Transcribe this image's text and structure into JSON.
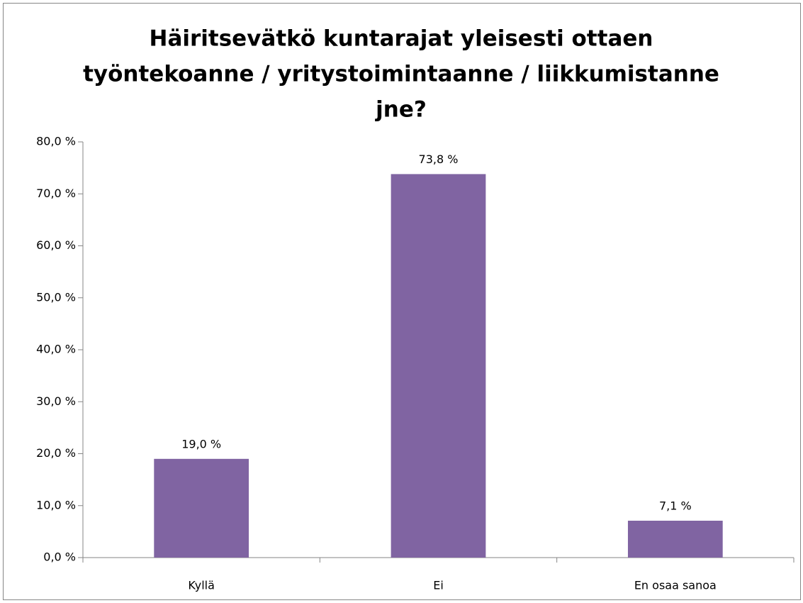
{
  "chart_data": {
    "type": "bar",
    "title": [
      "Häiritsevätkö kuntarajat yleisesti ottaen",
      "työntekoanne / yritystoimintaanne / liikkumistanne",
      "jne?"
    ],
    "categories": [
      "Kyllä",
      "Ei",
      "En osaa sanoa"
    ],
    "values": [
      19.0,
      73.8,
      7.1
    ],
    "value_labels": [
      "19,0 %",
      "73,8 %",
      "7,1 %"
    ],
    "color": "#8064a2",
    "ylim": [
      0,
      80
    ],
    "yticks": [
      {
        "value": 0,
        "label": "0,0 %"
      },
      {
        "value": 10,
        "label": "10,0 %"
      },
      {
        "value": 20,
        "label": "20,0 %"
      },
      {
        "value": 30,
        "label": "30,0 %"
      },
      {
        "value": 40,
        "label": "40,0 %"
      },
      {
        "value": 50,
        "label": "50,0 %"
      },
      {
        "value": 60,
        "label": "60,0 %"
      },
      {
        "value": 70,
        "label": "70,0 %"
      },
      {
        "value": 80,
        "label": "80,0 %"
      }
    ],
    "grid": false
  }
}
